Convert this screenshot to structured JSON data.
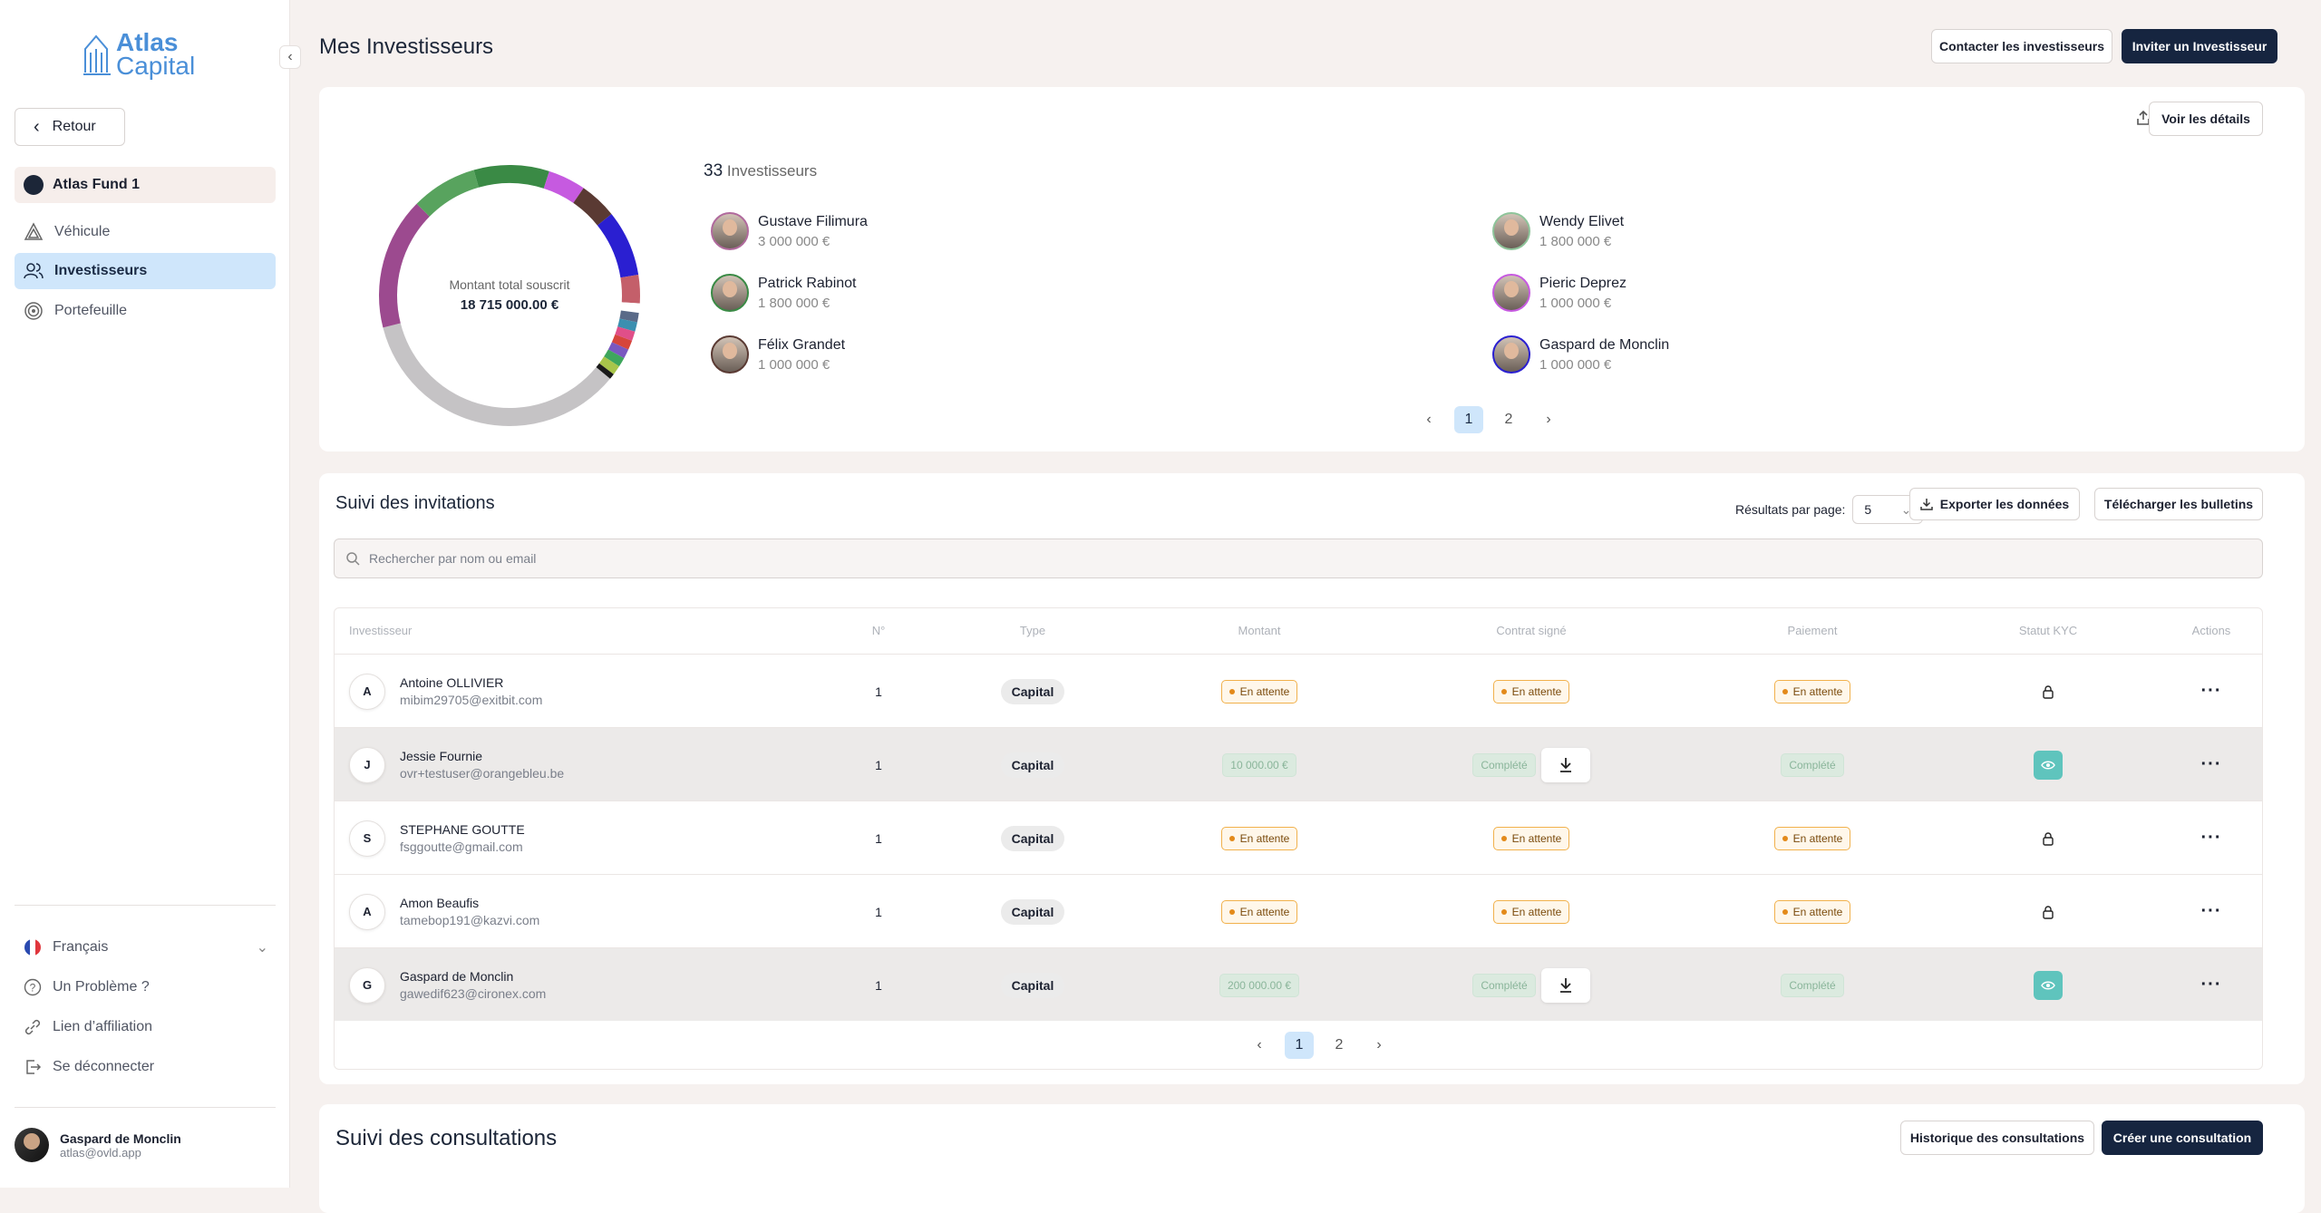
{
  "brand": {
    "line1": "Atlas",
    "line2": "Capital"
  },
  "sidebar": {
    "back_label": "Retour",
    "fund_name": "Atlas Fund 1",
    "items": [
      {
        "label": "Véhicule",
        "icon": "vehicle-icon"
      },
      {
        "label": "Investisseurs",
        "icon": "users-icon"
      },
      {
        "label": "Portefeuille",
        "icon": "target-icon"
      }
    ],
    "language": "Français",
    "help": "Un Problème ?",
    "affiliate": "Lien d’affiliation",
    "logout": "Se déconnecter",
    "user_name": "Gaspard de Monclin",
    "user_email": "atlas@ovld.app"
  },
  "header": {
    "title": "Mes Investisseurs",
    "contact_btn": "Contacter les investisseurs",
    "invite_btn": "Inviter un Investisseur"
  },
  "overview": {
    "details_btn": "Voir les détails",
    "total_label": "Montant total souscrit",
    "total_value": "18 715 000.00 €",
    "count": "33",
    "count_label": "Investisseurs",
    "investors": [
      {
        "name": "Gustave Filimura",
        "amount": "3 000 000 €"
      },
      {
        "name": "Wendy Elivet",
        "amount": "1 800 000 €"
      },
      {
        "name": "Patrick Rabinot",
        "amount": "1 800 000 €"
      },
      {
        "name": "Pieric Deprez",
        "amount": "1 000 000 €"
      },
      {
        "name": "Félix Grandet",
        "amount": "1 000 000 €"
      },
      {
        "name": "Gaspard de Monclin",
        "amount": "1 000 000 €"
      }
    ],
    "pages": [
      "1",
      "2"
    ],
    "donut_colors": [
      "#c5c3c5",
      "#9c4a8f",
      "#58a35e",
      "#3a8a45",
      "#c65ae0",
      "#5a3a33",
      "#2a1fd1",
      "#c45f6a",
      "#ffffff",
      "#5a6a88",
      "#3b8fb0",
      "#e04f89",
      "#d6453c",
      "#7a58c0",
      "#3ea65c",
      "#a8c54a",
      "#1a1a1a"
    ]
  },
  "invitations": {
    "title": "Suivi des invitations",
    "rpp_label": "Résultats par page:",
    "rpp_value": "5",
    "export_btn": "Exporter les données",
    "download_btn": "Télécharger les bulletins",
    "search_placeholder": "Rechercher par nom ou email",
    "columns": [
      "Investisseur",
      "N°",
      "Type",
      "Montant",
      "Contrat signé",
      "Paiement",
      "Statut KYC",
      "Actions"
    ],
    "rows": [
      {
        "initial": "A",
        "name": "Antoine OLLIVIER",
        "email": "mibim29705@exitbit.com",
        "num": "1",
        "type": "Capital",
        "amount": "En attente",
        "contract": "En attente",
        "payment": "En attente"
      },
      {
        "initial": "J",
        "name": "Jessie Fournie",
        "email": "ovr+testuser@orangebleu.be",
        "num": "1",
        "type": "Capital",
        "amount": "10 000.00 €",
        "contract": "Complété",
        "payment": "Complété"
      },
      {
        "initial": "S",
        "name": "STEPHANE GOUTTE",
        "email": "fsggoutte@gmail.com",
        "num": "1",
        "type": "Capital",
        "amount": "En attente",
        "contract": "En attente",
        "payment": "En attente"
      },
      {
        "initial": "A",
        "name": "Amon Beaufis",
        "email": "tamebop191@kazvi.com",
        "num": "1",
        "type": "Capital",
        "amount": "En attente",
        "contract": "En attente",
        "payment": "En attente"
      },
      {
        "initial": "G",
        "name": "Gaspard de Monclin",
        "email": "gawedif623@cironex.com",
        "num": "1",
        "type": "Capital",
        "amount": "200 000.00 €",
        "contract": "Complété",
        "payment": "Complété"
      }
    ],
    "pages": [
      "1",
      "2"
    ]
  },
  "consultations": {
    "title": "Suivi des consultations",
    "history_btn": "Historique des consultations",
    "create_btn": "Créer une consultation"
  }
}
